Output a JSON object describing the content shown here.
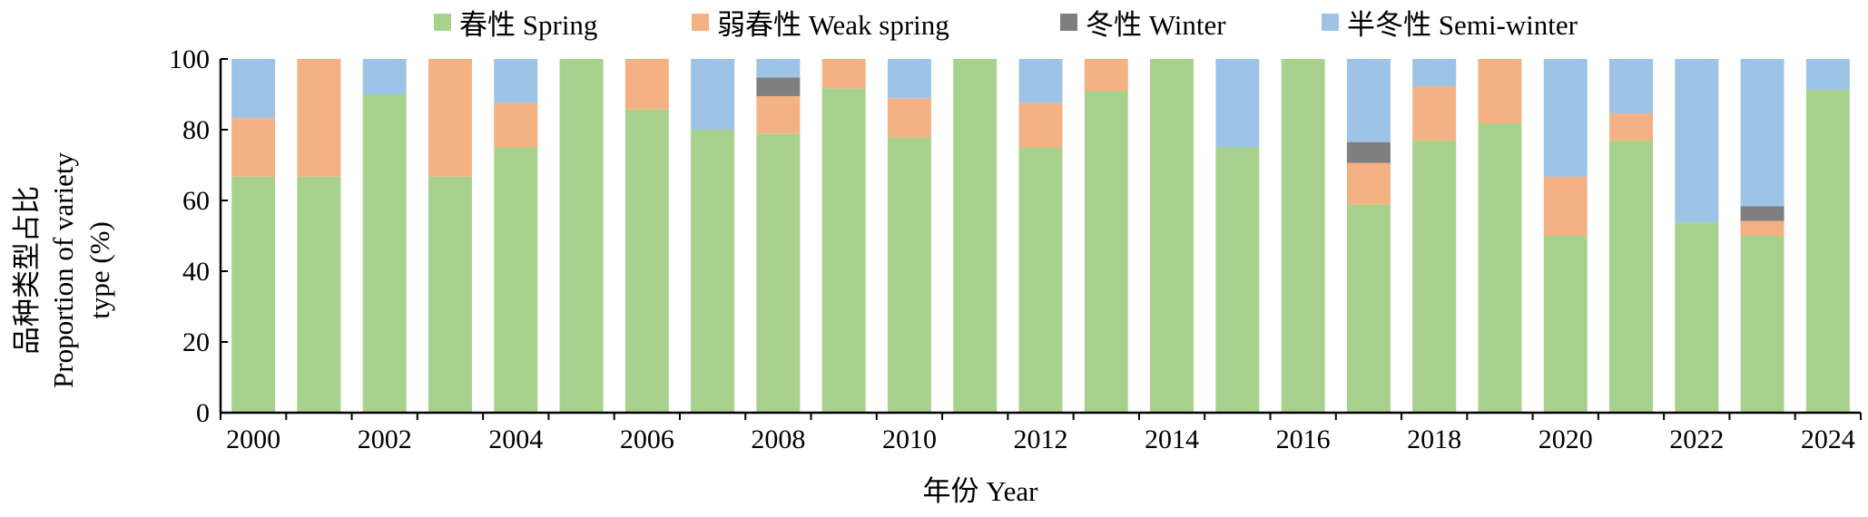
{
  "chart_data": {
    "type": "bar",
    "stacked": true,
    "xlabel": "年份 Year",
    "ylabel_line1": "品种类型占比",
    "ylabel_line2": "Proportion of variety",
    "ylabel_line3": "type (%)",
    "ylim": [
      0,
      100
    ],
    "yticks": [
      0,
      20,
      40,
      60,
      80,
      100
    ],
    "grid": false,
    "legend_position": "top",
    "categories": [
      "2000",
      "2001",
      "2002",
      "2003",
      "2004",
      "2005",
      "2006",
      "2007",
      "2008",
      "2009",
      "2010",
      "2011",
      "2012",
      "2013",
      "2014",
      "2015",
      "2016",
      "2017",
      "2018",
      "2019",
      "2020",
      "2021",
      "2022",
      "2023",
      "2024"
    ],
    "xtick_labels": [
      "2000",
      "2002",
      "2004",
      "2006",
      "2008",
      "2010",
      "2012",
      "2014",
      "2016",
      "2018",
      "2020",
      "2022",
      "2024"
    ],
    "series": [
      {
        "name": "春性 Spring",
        "color": "#a9d18e",
        "values": [
          66.7,
          66.7,
          90,
          66.7,
          75,
          100,
          85.7,
          80,
          78.9,
          91.7,
          77.8,
          100,
          75,
          90.9,
          100,
          75,
          100,
          58.8,
          76.9,
          81.8,
          50,
          76.9,
          53.8,
          50,
          91.3
        ]
      },
      {
        "name": "弱春性 Weak spring",
        "color": "#f4b183",
        "values": [
          16.6,
          33.3,
          0,
          33.3,
          12.5,
          0,
          14.3,
          0,
          10.6,
          8.3,
          11.1,
          0,
          12.5,
          9.1,
          0,
          0,
          0,
          11.8,
          15.4,
          18.2,
          16.7,
          7.7,
          0,
          4.2,
          0
        ]
      },
      {
        "name": "冬性 Winter",
        "color": "#7f7f7f",
        "values": [
          0,
          0,
          0,
          0,
          0,
          0,
          0,
          0,
          5.3,
          0,
          0,
          0,
          0,
          0,
          0,
          0,
          0,
          5.9,
          0,
          0,
          0,
          0,
          0,
          4.2,
          0
        ]
      },
      {
        "name": "半冬性 Semi-winter",
        "color": "#9dc3e6",
        "values": [
          16.7,
          0,
          10,
          0,
          12.5,
          0,
          0,
          20,
          5.2,
          0,
          11.1,
          0,
          12.5,
          0,
          0,
          25,
          0,
          23.5,
          7.7,
          0,
          33.3,
          15.4,
          46.2,
          41.6,
          8.7
        ]
      }
    ]
  }
}
